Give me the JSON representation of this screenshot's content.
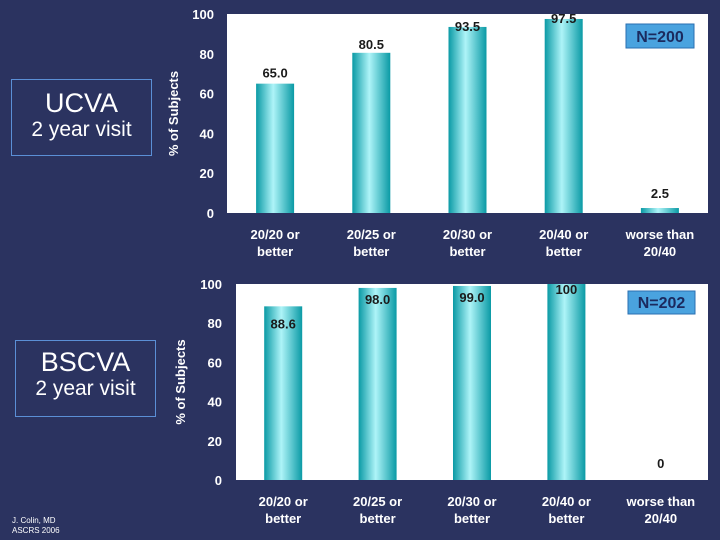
{
  "panels": {
    "ucva": {
      "title": "UCVA",
      "subtitle": "2 year visit"
    },
    "bscva": {
      "title": "BSCVA",
      "subtitle": "2 year visit"
    }
  },
  "credit": {
    "line1": "J. Colin, MD",
    "line2": "ASCRS 2006"
  },
  "colors": {
    "background": "#2b3360",
    "plot_area": "#ffffff",
    "bar_light": "#aef4f8",
    "bar_dark": "#0a9aa5",
    "axis_text": "#ffffff",
    "n_label_bg": "#4aa3df"
  },
  "chart_data": [
    {
      "type": "bar",
      "categories": [
        "20/20 or better",
        "20/25 or better",
        "20/30 or better",
        "20/40 or better",
        "worse than 20/40"
      ],
      "values": [
        65.0,
        80.5,
        93.5,
        97.5,
        2.5
      ],
      "value_labels": [
        "65.0",
        "80.5",
        "93.5",
        "97.5",
        "2.5"
      ],
      "ylabel": "% of Subjects",
      "ylim": [
        0,
        100
      ],
      "yticks": [
        0,
        20,
        40,
        60,
        80,
        100
      ],
      "annotation": "N=200",
      "grid": false
    },
    {
      "type": "bar",
      "categories": [
        "20/20 or better",
        "20/25 or better",
        "20/30 or better",
        "20/40 or better",
        "worse than 20/40"
      ],
      "values": [
        88.6,
        98.0,
        99.0,
        100,
        0
      ],
      "value_labels": [
        "88.6",
        "98.0",
        "99.0",
        "100",
        "0"
      ],
      "ylabel": "% of Subjects",
      "ylim": [
        0,
        100
      ],
      "yticks": [
        0,
        20,
        40,
        60,
        80,
        100
      ],
      "annotation": "N=202",
      "grid": false
    }
  ]
}
